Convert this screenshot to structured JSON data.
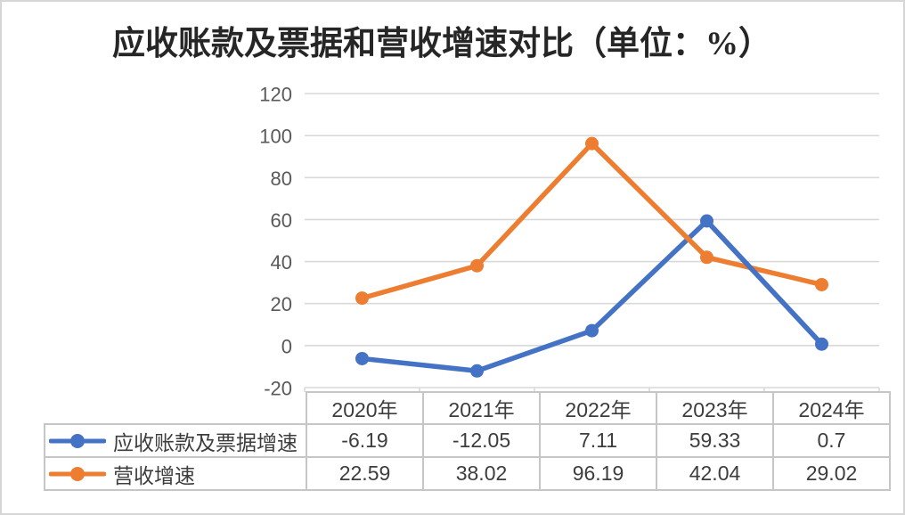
{
  "title": "应收账款及票据和营收增速对比（单位：%）",
  "chart_data": {
    "type": "line",
    "title": "应收账款及票据和营收增速对比（单位：%）",
    "categories": [
      "2020年",
      "2021年",
      "2022年",
      "2023年",
      "2024年"
    ],
    "series": [
      {
        "name": "应收账款及票据增速",
        "color": "#4472C4",
        "values": [
          -6.19,
          -12.05,
          7.11,
          59.33,
          0.7
        ]
      },
      {
        "name": "营收增速",
        "color": "#ED7D31",
        "values": [
          22.59,
          38.02,
          96.19,
          42.04,
          29.02
        ]
      }
    ],
    "ylim": [
      -20,
      120
    ],
    "yticks": [
      120,
      100,
      80,
      60,
      40,
      20,
      0,
      -20
    ],
    "grid": true,
    "marker": "circle",
    "legend_position": "table-left",
    "colors": {
      "gridline": "#d9d9d9",
      "axis_label": "#595959",
      "table_border": "#c6c6c6",
      "text": "#3d3d3d"
    }
  }
}
